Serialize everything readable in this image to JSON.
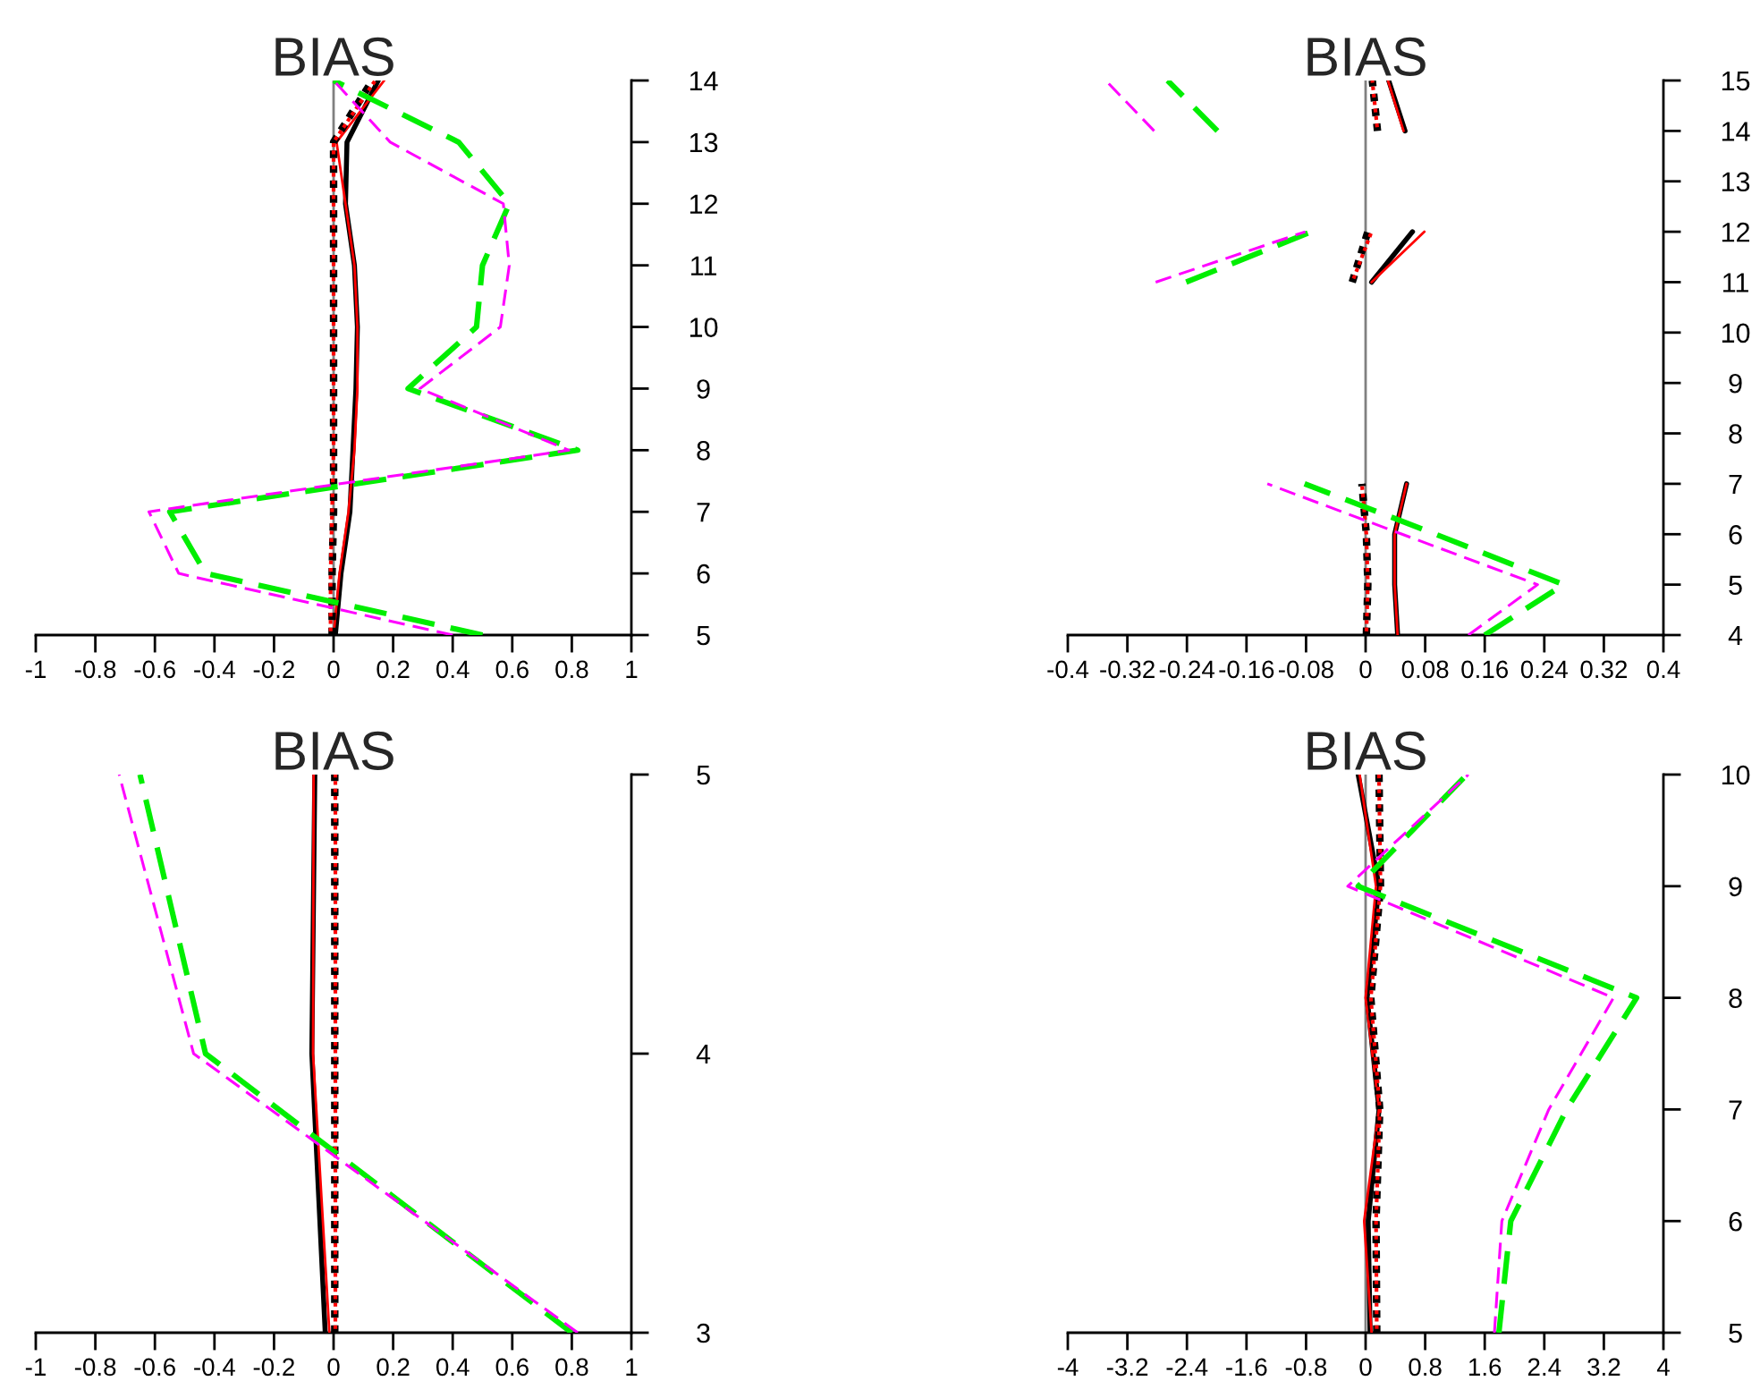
{
  "chart_data": [
    {
      "type": "line",
      "title": "BIAS",
      "xlim": [
        -1,
        1
      ],
      "xticks": [
        -1,
        -0.8,
        -0.6,
        -0.4,
        -0.2,
        0,
        0.2,
        0.4,
        0.6,
        0.8,
        1
      ],
      "ylim": [
        5,
        14
      ],
      "yticks": [
        5,
        6,
        7,
        8,
        9,
        10,
        11,
        12,
        13,
        14
      ],
      "grid": false,
      "ref_lines": [
        {
          "axis": "x",
          "value": 0,
          "color": "#808080"
        }
      ],
      "series": [
        {
          "color": "#000000",
          "line_style": "solid",
          "x": [
            0.006,
            0.025,
            0.055,
            0.065,
            0.075,
            0.08,
            0.07,
            0.04,
            0.045,
            0.15
          ],
          "values": [
            5,
            6,
            7,
            8,
            9,
            10,
            11,
            12,
            13,
            14
          ]
        },
        {
          "color": "#ff0000",
          "line_style": "solid",
          "x": [
            0.0,
            0.02,
            0.05,
            0.07,
            0.08,
            0.08,
            0.07,
            0.04,
            0.01,
            0.17
          ],
          "values": [
            5,
            6,
            7,
            8,
            9,
            10,
            11,
            12,
            13,
            14
          ]
        },
        {
          "color": "#000000",
          "line_style": "dotted",
          "x": [
            -0.005,
            -0.005,
            0.0,
            0.0,
            0.0,
            0.0,
            0.0,
            0.0,
            0.0,
            0.13
          ],
          "values": [
            5,
            6,
            7,
            8,
            9,
            10,
            11,
            12,
            13,
            14
          ]
        },
        {
          "color": "#ff0000",
          "line_style": "dotted",
          "x": [
            -0.01,
            -0.01,
            -0.005,
            0.0,
            0.0,
            0.0,
            0.0,
            0.0,
            0.0,
            0.14
          ],
          "values": [
            5,
            6,
            7,
            8,
            9,
            10,
            11,
            12,
            13,
            14
          ]
        },
        {
          "color": "#00ee00",
          "line_style": "dashed",
          "x": [
            0.5,
            -0.43,
            -0.55,
            0.82,
            0.25,
            0.48,
            0.5,
            0.59,
            0.42,
            0.0
          ],
          "values": [
            5,
            6,
            7,
            8,
            9,
            10,
            11,
            12,
            13,
            14
          ]
        },
        {
          "color": "#ff00ff",
          "line_style": "dashed",
          "x": [
            0.4,
            -0.52,
            -0.62,
            0.79,
            0.29,
            0.56,
            0.59,
            0.57,
            0.19,
            0.0
          ],
          "values": [
            5,
            6,
            7,
            8,
            9,
            10,
            11,
            12,
            13,
            14
          ]
        }
      ]
    },
    {
      "type": "line",
      "title": "BIAS",
      "xlim": [
        -0.4,
        0.4
      ],
      "xticks": [
        -0.4,
        -0.32,
        -0.24,
        -0.16,
        -0.08,
        0,
        0.08,
        0.16,
        0.24,
        0.32,
        0.4
      ],
      "ylim": [
        4,
        15
      ],
      "yticks": [
        4,
        5,
        6,
        7,
        8,
        9,
        10,
        11,
        12,
        13,
        14,
        15
      ],
      "grid": false,
      "ref_lines": [
        {
          "axis": "x",
          "value": 0,
          "color": "#808080"
        }
      ],
      "series": [
        {
          "color": "#000000",
          "line_style": "solid",
          "x": [
            0.043,
            0.039,
            0.039,
            0.055,
            null,
            null,
            null,
            0.008,
            0.063,
            null,
            0.053,
            0.031
          ],
          "values": [
            4,
            5,
            6,
            7,
            null,
            null,
            null,
            11,
            12,
            null,
            14,
            15
          ]
        },
        {
          "color": "#ff0000",
          "line_style": "solid",
          "x": [
            0.043,
            0.039,
            0.039,
            0.055,
            null,
            null,
            null,
            0.008,
            0.079,
            null,
            0.051,
            0.03
          ],
          "values": [
            4,
            5,
            6,
            7,
            null,
            null,
            null,
            11,
            12,
            null,
            14,
            15
          ]
        },
        {
          "color": "#000000",
          "line_style": "dotted",
          "x": [
            0.001,
            0.003,
            0.001,
            -0.005,
            null,
            null,
            null,
            -0.018,
            0.003,
            null,
            0.016,
            0.009
          ],
          "values": [
            4,
            5,
            6,
            7,
            null,
            null,
            null,
            11,
            12,
            null,
            14,
            15
          ]
        },
        {
          "color": "#ff0000",
          "line_style": "dotted",
          "x": [
            0.001,
            0.003,
            0.001,
            -0.005,
            null,
            null,
            null,
            -0.018,
            0.008,
            null,
            0.016,
            0.009
          ],
          "values": [
            4,
            5,
            6,
            7,
            null,
            null,
            null,
            11,
            12,
            null,
            14,
            15
          ]
        },
        {
          "color": "#00ee00",
          "line_style": "dashed",
          "x": [
            0.16,
            0.266,
            0.094,
            -0.082,
            null,
            null,
            null,
            -0.241,
            -0.073,
            null,
            -0.199,
            -0.266
          ],
          "values": [
            4,
            5,
            6,
            7,
            null,
            null,
            null,
            11,
            12,
            null,
            14,
            15
          ]
        },
        {
          "color": "#ff00ff",
          "line_style": "dashed",
          "x": [
            0.138,
            0.231,
            0.049,
            -0.132,
            null,
            null,
            null,
            -0.282,
            -0.081,
            null,
            -0.284,
            -0.349
          ],
          "values": [
            4,
            5,
            6,
            7,
            null,
            null,
            null,
            11,
            12,
            null,
            14,
            15
          ]
        }
      ]
    },
    {
      "type": "line",
      "title": "BIAS",
      "xlim": [
        -1,
        1
      ],
      "xticks": [
        -1,
        -0.8,
        -0.6,
        -0.4,
        -0.2,
        0,
        0.2,
        0.4,
        0.6,
        0.8,
        1
      ],
      "ylim": [
        3,
        5
      ],
      "yticks": [
        3,
        4,
        5
      ],
      "grid": false,
      "series": [
        {
          "color": "#000000",
          "line_style": "solid",
          "x": [
            -0.028,
            -0.073,
            -0.063
          ],
          "values": [
            3,
            4,
            5
          ]
        },
        {
          "color": "#ff0000",
          "line_style": "solid",
          "x": [
            -0.014,
            -0.069,
            -0.067
          ],
          "values": [
            3,
            4,
            5
          ]
        },
        {
          "color": "#000000",
          "line_style": "dotted",
          "x": [
            0.004,
            0.004,
            0.004
          ],
          "values": [
            3,
            4,
            5
          ]
        },
        {
          "color": "#ff0000",
          "line_style": "dotted",
          "x": [
            0.006,
            0.006,
            0.006
          ],
          "values": [
            3,
            4,
            5
          ]
        },
        {
          "color": "#00ee00",
          "line_style": "dashed",
          "x": [
            0.8,
            -0.43,
            -0.65
          ],
          "values": [
            3,
            4,
            5
          ]
        },
        {
          "color": "#ff00ff",
          "line_style": "dashed",
          "x": [
            0.82,
            -0.47,
            -0.72
          ],
          "values": [
            3,
            4,
            5
          ]
        }
      ]
    },
    {
      "type": "line",
      "title": "BIAS",
      "xlim": [
        -4,
        4
      ],
      "xticks": [
        -4,
        -3.2,
        -2.4,
        -1.6,
        -0.8,
        0,
        0.8,
        1.6,
        2.4,
        3.2,
        4
      ],
      "ylim": [
        5,
        10
      ],
      "yticks": [
        5,
        6,
        7,
        8,
        9,
        10
      ],
      "grid": false,
      "ref_lines": [
        {
          "axis": "x",
          "value": 0,
          "color": "#808080"
        }
      ],
      "series": [
        {
          "color": "#000000",
          "line_style": "solid",
          "x": [
            0.06,
            0.035,
            0.18,
            0.02,
            0.18,
            -0.1
          ],
          "values": [
            5,
            6,
            7,
            8,
            9,
            10
          ]
        },
        {
          "color": "#ff0000",
          "line_style": "solid",
          "x": [
            0.08,
            -0.02,
            0.18,
            0.0,
            0.14,
            -0.08
          ],
          "values": [
            5,
            6,
            7,
            8,
            9,
            10
          ]
        },
        {
          "color": "#000000",
          "line_style": "dotted",
          "x": [
            0.15,
            0.14,
            0.19,
            0.07,
            0.2,
            0.18
          ],
          "values": [
            5,
            6,
            7,
            8,
            9,
            10
          ]
        },
        {
          "color": "#ff0000",
          "line_style": "dotted",
          "x": [
            0.15,
            0.14,
            0.19,
            0.07,
            0.2,
            0.18
          ],
          "values": [
            5,
            6,
            7,
            8,
            9,
            10
          ]
        },
        {
          "color": "#00ee00",
          "line_style": "dashed",
          "x": [
            1.79,
            1.95,
            2.7,
            3.64,
            -0.1,
            1.36
          ],
          "values": [
            5,
            6,
            7,
            8,
            9,
            10
          ]
        },
        {
          "color": "#ff00ff",
          "line_style": "dashed",
          "x": [
            1.73,
            1.83,
            2.46,
            3.33,
            -0.24,
            1.38
          ],
          "values": [
            5,
            6,
            7,
            8,
            9,
            10
          ]
        }
      ]
    }
  ]
}
